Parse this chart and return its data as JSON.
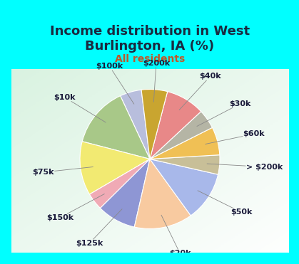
{
  "title": "Income distribution in West\nBurlington, IA (%)",
  "subtitle": "All residents",
  "labels": [
    "$100k",
    "$10k",
    "$75k",
    "$150k",
    "$125k",
    "$20k",
    "$50k",
    "> $200k",
    "$60k",
    "$30k",
    "$40k",
    "$200k"
  ],
  "sizes": [
    5.0,
    14.0,
    12.5,
    4.0,
    9.0,
    13.5,
    11.5,
    4.5,
    6.5,
    4.5,
    9.0,
    6.0
  ],
  "colors": [
    "#b8bedd",
    "#a8c888",
    "#f2ea72",
    "#f0aab5",
    "#8e96d4",
    "#f8caA0",
    "#a8b8ea",
    "#c8bf98",
    "#f0c055",
    "#b5b5a5",
    "#e88888",
    "#c9a530"
  ],
  "background_top": "#00ffff",
  "background_chart_color": "#d8efe5",
  "title_color": "#1a2a40",
  "subtitle_color": "#c05828",
  "title_fontsize": 13,
  "subtitle_fontsize": 10,
  "label_fontsize": 8,
  "label_color": "#1a1a3a",
  "wedge_linewidth": 0.8,
  "wedge_edgecolor": "white",
  "start_angle": 97
}
